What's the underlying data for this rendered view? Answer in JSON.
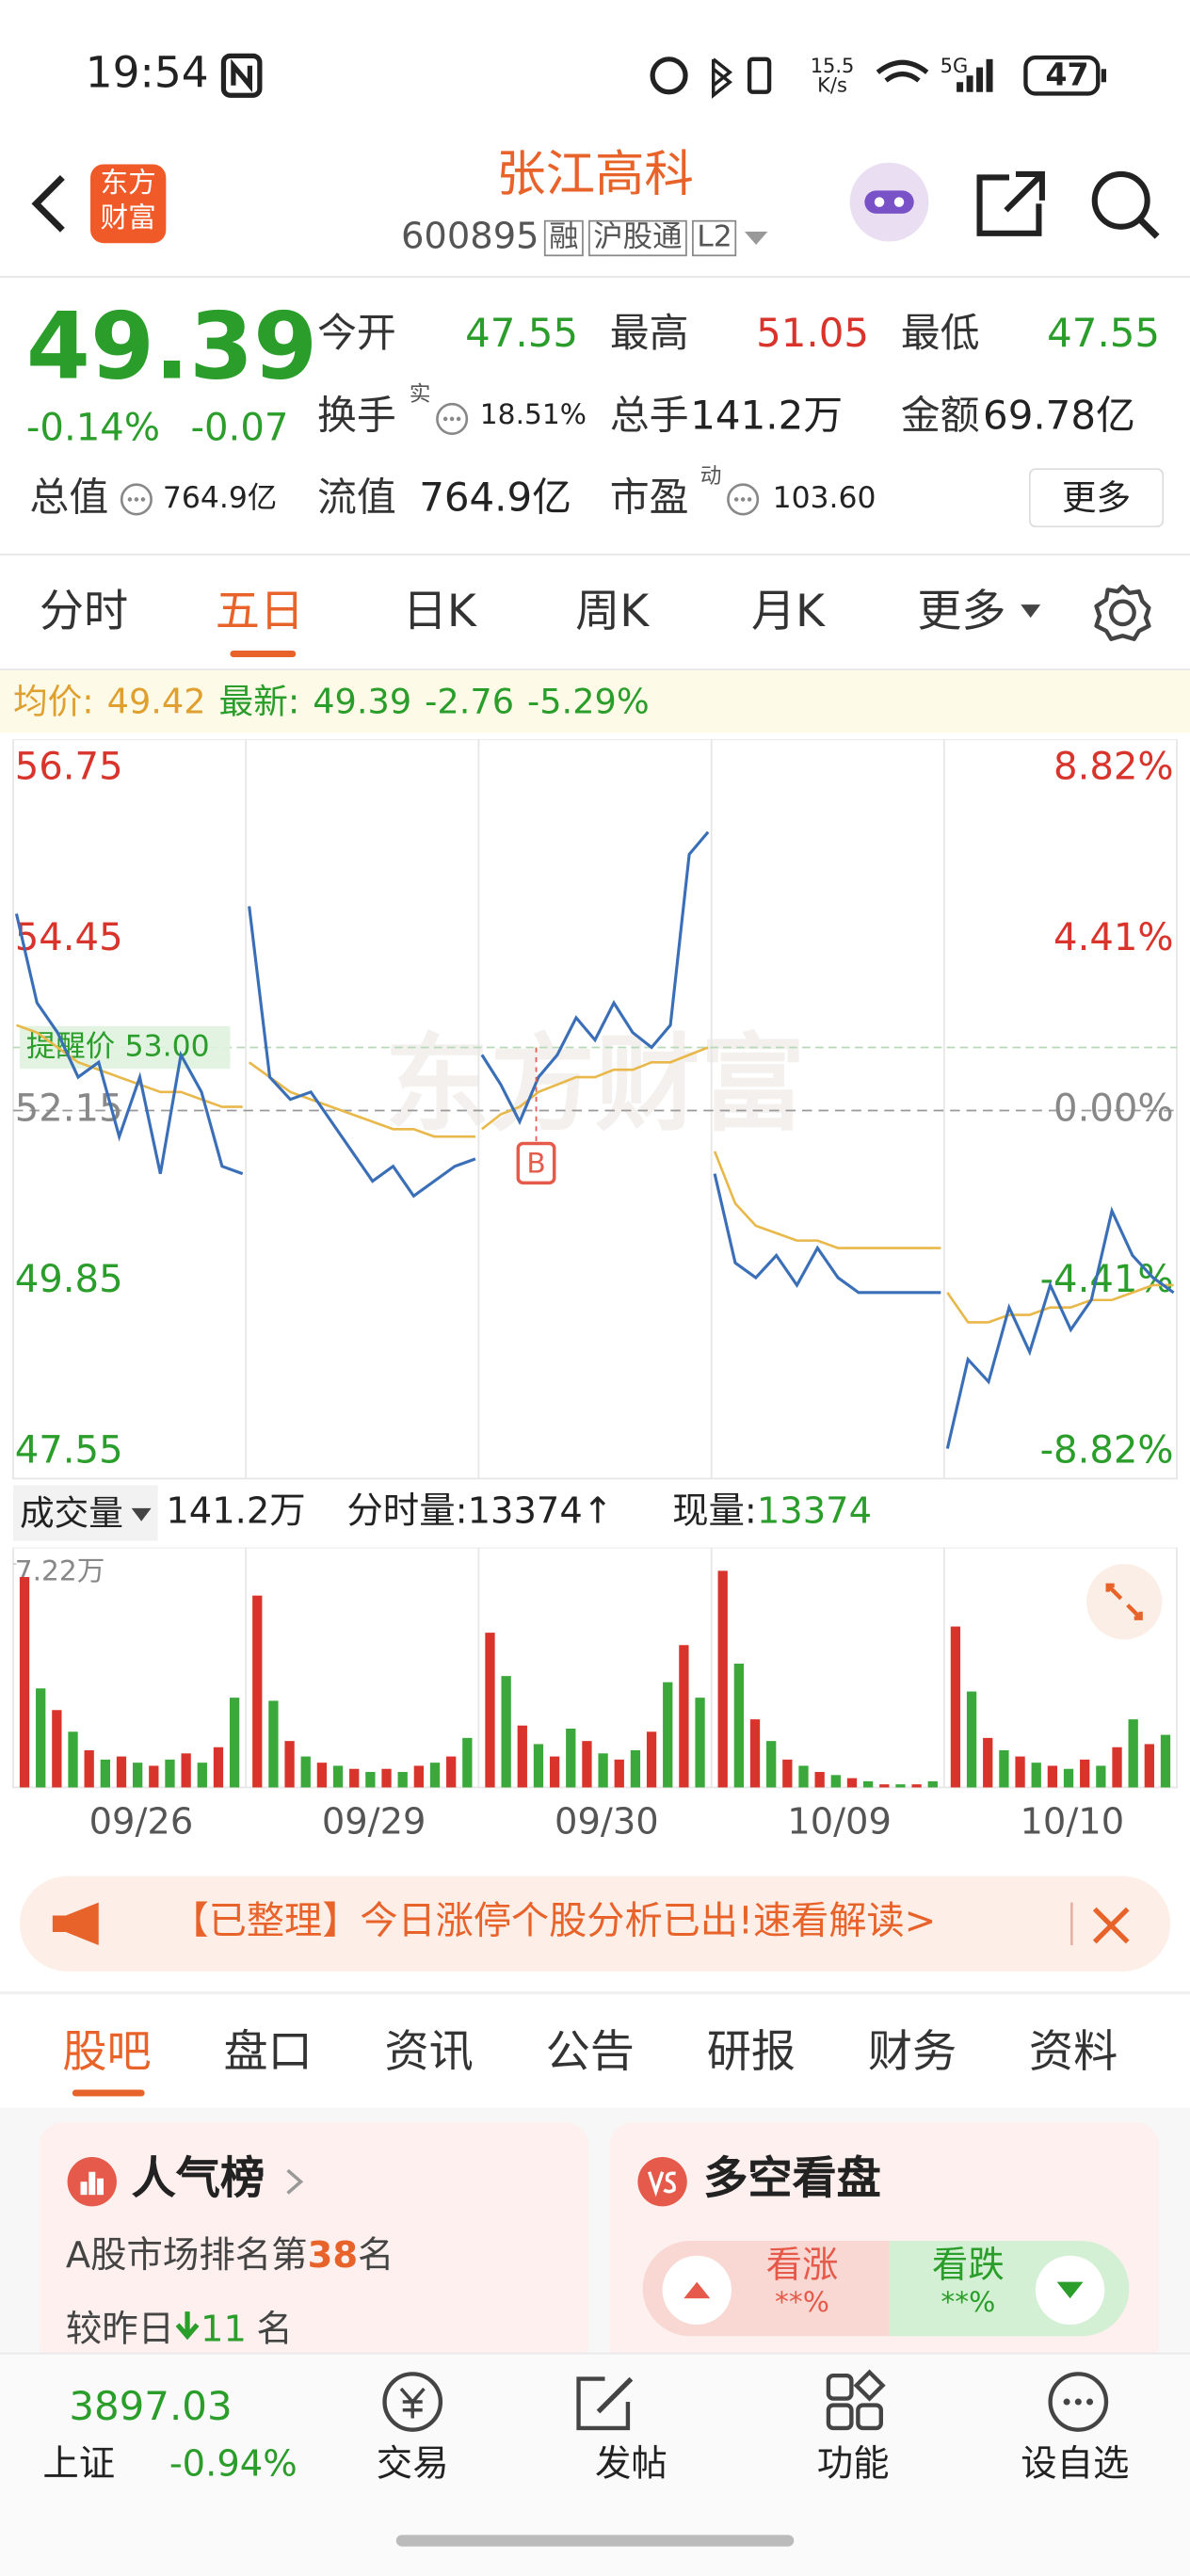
{
  "status": {
    "time": "19:54",
    "net_speed": "15.5",
    "net_unit": "K/s",
    "network": "5G",
    "battery": "47"
  },
  "header": {
    "logo": [
      "东方",
      "财富"
    ],
    "title": "张江高科",
    "code": "600895",
    "tags": [
      "融",
      "沪股通",
      "L2"
    ]
  },
  "quote": {
    "price": "49.39",
    "change_pct": "-0.14%",
    "change": "-0.07",
    "fields": [
      {
        "label": "今开",
        "value": "47.55"
      },
      {
        "label": "最高",
        "value": "51.05"
      },
      {
        "label": "最低",
        "value": "47.55"
      },
      {
        "label": "换手",
        "sup": "实",
        "value": "18.51%"
      },
      {
        "label": "总手",
        "value": "141.2万"
      },
      {
        "label": "金额",
        "value": "69.78亿"
      },
      {
        "label": "总值",
        "value": "764.9亿"
      },
      {
        "label": "流值",
        "value": "764.9亿"
      },
      {
        "label": "市盈",
        "sup": "动",
        "value": "103.60"
      }
    ],
    "more": "更多"
  },
  "tabs": {
    "items": [
      "分时",
      "五日",
      "日K",
      "周K",
      "月K",
      "更多"
    ],
    "active": 1
  },
  "info": {
    "avg_label": "均价:",
    "avg": "49.42",
    "last_label": "最新:",
    "last": "49.39",
    "change": "-2.76",
    "change_pct": "-5.29%"
  },
  "chart": {
    "price_ticks": [
      56.75,
      54.45,
      52.15,
      49.85,
      47.55
    ],
    "pct_ticks": [
      "8.82%",
      "4.41%",
      "0.00%",
      "-4.41%",
      "-8.82%"
    ],
    "alert": {
      "label": "提醒价",
      "price": {
        "value": 53,
        "label": "53.00"
      }
    },
    "marker": "B",
    "watermark": "东方财富",
    "dates": [
      "09/26",
      "09/29",
      "09/30",
      "10/09",
      "10/10"
    ],
    "days": [
      {
        "price": [
          54.8,
          53.6,
          53.2,
          52.6,
          52.8,
          51.8,
          52.6,
          51.3,
          52.9,
          52.4,
          51.4,
          51.3
        ],
        "avg": [
          53.3,
          53.2,
          53.0,
          52.8,
          52.7,
          52.6,
          52.5,
          52.4,
          52.4,
          52.3,
          52.2,
          52.2
        ],
        "volume": [
          6.8,
          3.2,
          2.5,
          1.8,
          1.2,
          0.9,
          1.0,
          0.8,
          0.7,
          0.9,
          1.1,
          0.8,
          1.3,
          2.9
        ]
      },
      {
        "price": [
          54.9,
          52.6,
          52.3,
          52.4,
          52.0,
          51.6,
          51.2,
          51.4,
          51.0,
          51.2,
          51.4,
          51.5
        ],
        "avg": [
          52.8,
          52.6,
          52.4,
          52.3,
          52.2,
          52.1,
          52.0,
          51.9,
          51.9,
          51.8,
          51.8,
          51.8
        ],
        "volume": [
          6.2,
          2.8,
          1.5,
          1.0,
          0.8,
          0.7,
          0.6,
          0.5,
          0.6,
          0.5,
          0.7,
          0.8,
          1.0,
          1.6
        ]
      },
      {
        "price": [
          52.9,
          52.5,
          52.0,
          52.6,
          52.9,
          53.4,
          53.1,
          53.6,
          53.2,
          53.0,
          53.3,
          55.6,
          55.9
        ],
        "avg": [
          51.9,
          52.1,
          52.2,
          52.4,
          52.5,
          52.6,
          52.6,
          52.7,
          52.7,
          52.8,
          52.8,
          52.9,
          53.0
        ],
        "volume": [
          5.0,
          3.6,
          2.0,
          1.4,
          1.0,
          1.9,
          1.5,
          1.1,
          0.9,
          1.2,
          1.8,
          3.4,
          4.6,
          2.9
        ]
      },
      {
        "price": [
          51.3,
          50.1,
          49.9,
          50.2,
          49.8,
          50.3,
          49.9,
          49.7,
          49.7,
          49.7,
          49.7,
          49.7
        ],
        "avg": [
          51.6,
          50.9,
          50.6,
          50.5,
          50.4,
          50.4,
          50.3,
          50.3,
          50.3,
          50.3,
          50.3,
          50.3
        ],
        "volume": [
          7.0,
          4.0,
          2.2,
          1.5,
          0.9,
          0.7,
          0.5,
          0.4,
          0.3,
          0.2,
          0.1,
          0.1,
          0.1,
          0.2
        ]
      },
      {
        "price": [
          47.6,
          48.8,
          48.5,
          49.5,
          48.9,
          49.8,
          49.2,
          49.6,
          50.8,
          50.2,
          49.9,
          49.7
        ],
        "avg": [
          49.7,
          49.3,
          49.3,
          49.4,
          49.4,
          49.5,
          49.5,
          49.6,
          49.6,
          49.7,
          49.8,
          49.8
        ],
        "volume": [
          5.2,
          3.1,
          1.6,
          1.2,
          1.0,
          0.8,
          0.7,
          0.6,
          0.9,
          0.7,
          1.3,
          2.2,
          1.4,
          1.7
        ]
      }
    ]
  },
  "volume": {
    "label": "成交量",
    "total": "141.2万",
    "tick_label": "分时量:",
    "tick": "13374",
    "arrow": "↑",
    "now_label": "现量:",
    "now": "13374",
    "max": {
      "value": 7.22,
      "label": "7.22万"
    }
  },
  "banner": {
    "text": "【已整理】今日涨停个股分析已出!速看解读>"
  },
  "sections": {
    "items": [
      "股吧",
      "盘口",
      "资讯",
      "公告",
      "研报",
      "财务",
      "资料"
    ],
    "active": 0
  },
  "cards": {
    "popularity": {
      "title": "人气榜",
      "rank_prefix": "A股市场排名第",
      "rank": "38",
      "rank_suffix": "名",
      "change_prefix": "较昨日",
      "change": "11",
      "change_suffix": "名"
    },
    "sentiment": {
      "title": "多空看盘",
      "bull_label": "看涨",
      "bull": "**%",
      "bear_label": "看跌",
      "bear": "**%"
    }
  },
  "footer": {
    "index": {
      "value": "3897.03",
      "name": "上证",
      "change": "-0.94%"
    },
    "nav": [
      "交易",
      "发帖",
      "功能",
      "设自选"
    ]
  }
}
